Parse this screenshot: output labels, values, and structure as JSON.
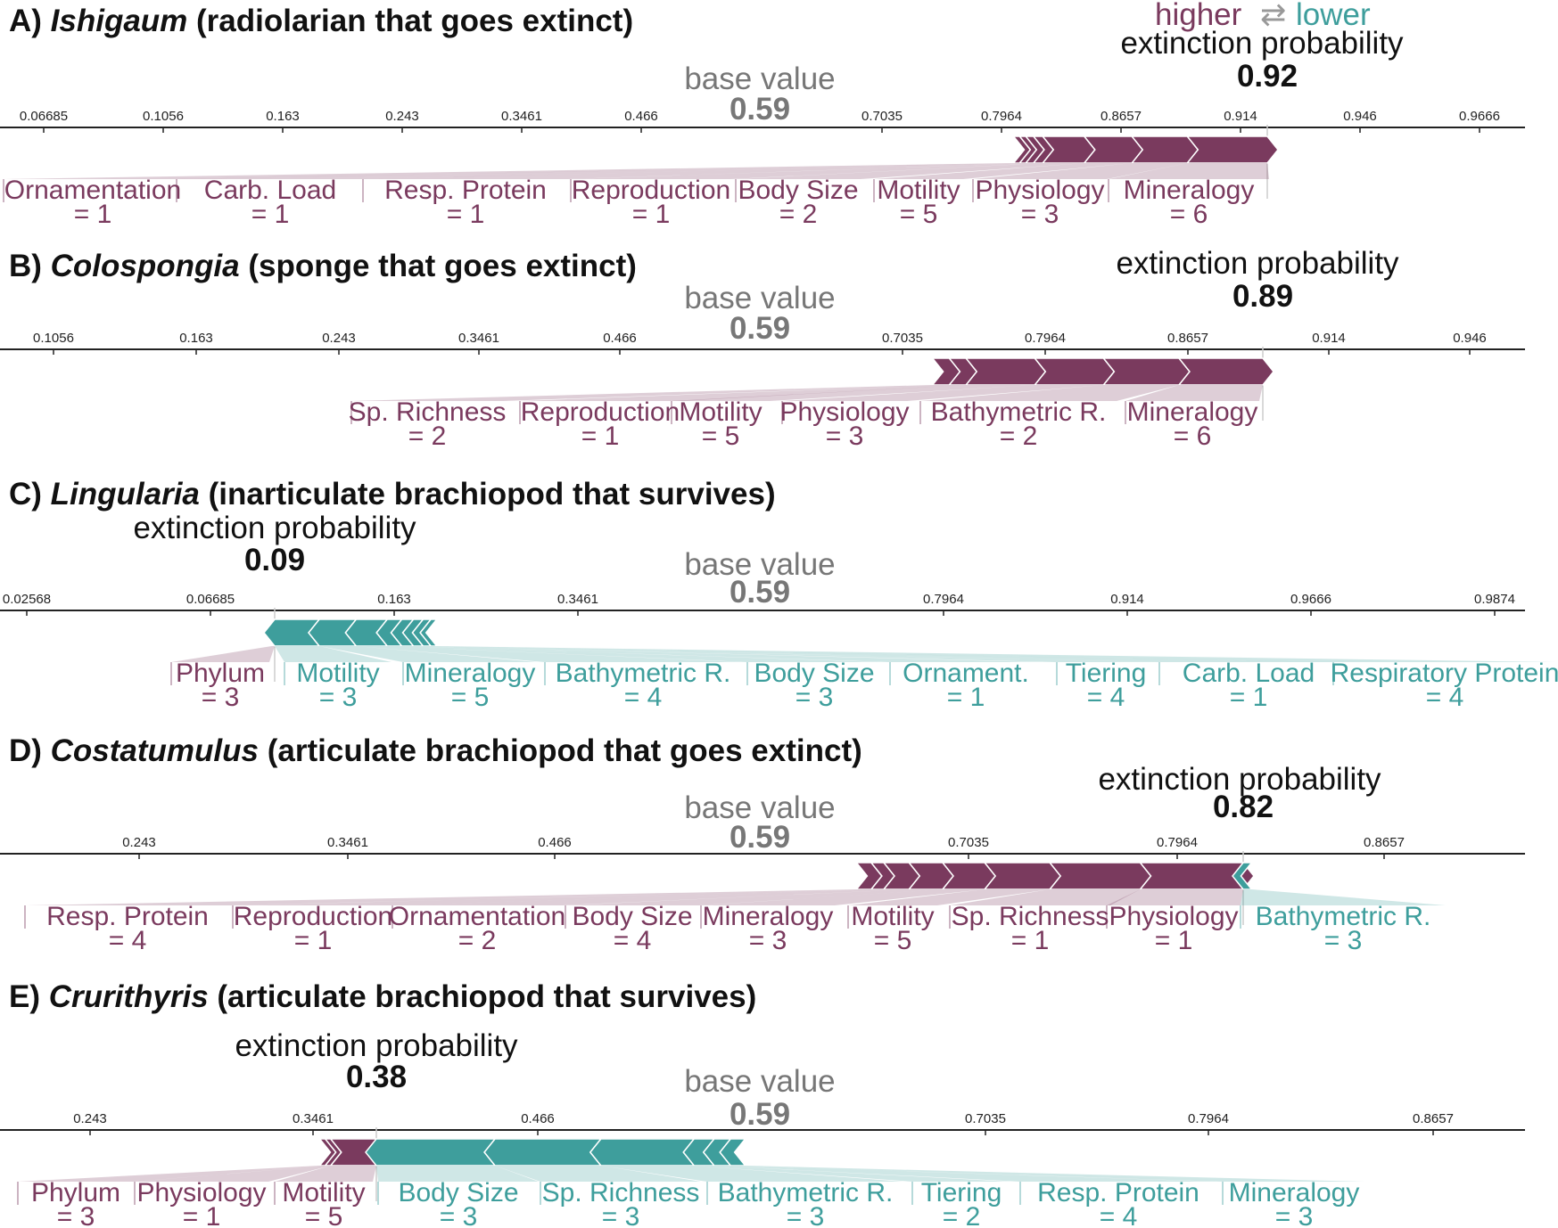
{
  "colors": {
    "higher": "#7a3a5e",
    "lower": "#3e9e9c",
    "axis": "#222222",
    "muted": "#777777"
  },
  "legend": {
    "higher": "higher",
    "arrow": "⇄",
    "lower": "lower"
  },
  "labels": {
    "base_value": "base value",
    "output": "extinction probability"
  },
  "chart_data": [
    {
      "type": "force",
      "panel": "A)",
      "taxon": "Ishigaum",
      "desc": "(radiolarian that goes extinct)",
      "base_value": 0.59,
      "base_value_label": "0.59",
      "output_value": 0.92,
      "output_value_label": "0.92",
      "ticks": [
        "0.06685",
        "0.1056",
        "0.163",
        "0.243",
        "0.3461",
        "0.466",
        "0.7035",
        "0.7964",
        "0.8657",
        "0.914",
        "0.946",
        "0.9666"
      ],
      "higher": [
        {
          "name": "Ornamentation",
          "value": "= 1",
          "weight": 0.004
        },
        {
          "name": "Carb. Load",
          "value": "= 1",
          "weight": 0.004
        },
        {
          "name": "Resp. Protein",
          "value": "= 1",
          "weight": 0.005
        },
        {
          "name": "Reproduction",
          "value": "= 1",
          "weight": 0.006
        },
        {
          "name": "Body Size",
          "value": "= 2",
          "weight": 0.027
        },
        {
          "name": "Motility",
          "value": "= 5",
          "weight": 0.031
        },
        {
          "name": "Physiology",
          "value": "= 3",
          "weight": 0.036
        },
        {
          "name": "Mineralogy",
          "value": "= 6",
          "weight": 0.052
        }
      ],
      "lower": []
    },
    {
      "type": "force",
      "panel": "B)",
      "taxon": "Colospongia",
      "desc": "(sponge that goes extinct)",
      "base_value": 0.59,
      "base_value_label": "0.59",
      "output_value": 0.89,
      "output_value_label": "0.89",
      "ticks": [
        "0.1056",
        "0.163",
        "0.243",
        "0.3461",
        "0.466",
        "0.7035",
        "0.7964",
        "0.8657",
        "0.914",
        "0.946"
      ],
      "higher": [
        {
          "name": "Sp. Richness",
          "value": "= 2",
          "weight": 0.01
        },
        {
          "name": "Reproduction",
          "value": "= 1",
          "weight": 0.01
        },
        {
          "name": "Motility",
          "value": "= 5",
          "weight": 0.041
        },
        {
          "name": "Physiology",
          "value": "= 3",
          "weight": 0.041
        },
        {
          "name": "Bathymetric R.",
          "value": "= 2",
          "weight": 0.045
        },
        {
          "name": "Mineralogy",
          "value": "= 6",
          "weight": 0.05
        }
      ],
      "lower": []
    },
    {
      "type": "force",
      "panel": "C)",
      "taxon": "Lingularia",
      "desc": "(inarticulate brachiopod that survives)",
      "base_value": 0.59,
      "base_value_label": "0.59",
      "output_value": 0.09,
      "output_value_label": "0.09",
      "ticks": [
        "0.02568",
        "0.06685",
        "0.163",
        "0.3461",
        "0.7964",
        "0.914",
        "0.9666",
        "0.9874"
      ],
      "higher": [
        {
          "name": "Phylum",
          "value": "= 3",
          "weight": 0.003
        }
      ],
      "lower": [
        {
          "name": "Motility",
          "value": "= 3",
          "weight": 0.046
        },
        {
          "name": "Mineralogy",
          "value": "= 5",
          "weight": 0.038
        },
        {
          "name": "Bathymetric R.",
          "value": "= 4",
          "weight": 0.032
        },
        {
          "name": "Body Size",
          "value": "= 3",
          "weight": 0.015
        },
        {
          "name": "Ornament.",
          "value": "= 1",
          "weight": 0.012
        },
        {
          "name": "Tiering",
          "value": "= 4",
          "weight": 0.01
        },
        {
          "name": "Carb. Load",
          "value": "= 1",
          "weight": 0.008
        },
        {
          "name": "Respiratory Protein",
          "value": "= 4",
          "weight": 0.006
        }
      ]
    },
    {
      "type": "force",
      "panel": "D)",
      "taxon": "Costatumulus",
      "desc": "(articulate brachiopod that goes extinct)",
      "base_value": 0.59,
      "base_value_label": "0.59",
      "output_value": 0.82,
      "output_value_label": "0.82",
      "ticks": [
        "0.243",
        "0.3461",
        "0.466",
        "0.7035",
        "0.7964",
        "0.8657"
      ],
      "higher": [
        {
          "name": "Resp. Protein",
          "value": "= 4",
          "weight": 0.007
        },
        {
          "name": "Reproduction",
          "value": "= 1",
          "weight": 0.006
        },
        {
          "name": "Ornamentation",
          "value": "= 2",
          "weight": 0.012
        },
        {
          "name": "Body Size",
          "value": "= 4",
          "weight": 0.016
        },
        {
          "name": "Mineralogy",
          "value": "= 3",
          "weight": 0.02
        },
        {
          "name": "Motility",
          "value": "= 5",
          "weight": 0.031
        },
        {
          "name": "Sp. Richness",
          "value": "= 1",
          "weight": 0.043
        },
        {
          "name": "Physiology",
          "value": "= 1",
          "weight": 0.049
        }
      ],
      "lower": [
        {
          "name": "Bathymetric R.",
          "value": "= 3",
          "weight": 0.004
        }
      ]
    },
    {
      "type": "force",
      "panel": "E)",
      "taxon": "Crurithyris",
      "desc": "(articulate brachiopod that survives)",
      "base_value": 0.59,
      "base_value_label": "0.59",
      "output_value": 0.38,
      "output_value_label": "0.38",
      "ticks": [
        "0.243",
        "0.3461",
        "0.466",
        "0.7035",
        "0.7964",
        "0.8657"
      ],
      "higher": [
        {
          "name": "Phylum",
          "value": "= 3",
          "weight": 0.003
        },
        {
          "name": "Physiology",
          "value": "= 1",
          "weight": 0.003
        },
        {
          "name": "Motility",
          "value": "= 5",
          "weight": 0.025
        }
      ],
      "lower": [
        {
          "name": "Body Size",
          "value": "= 3",
          "weight": 0.065
        },
        {
          "name": "Sp. Richness",
          "value": "= 3",
          "weight": 0.058
        },
        {
          "name": "Bathymetric R.",
          "value": "= 3",
          "weight": 0.051
        },
        {
          "name": "Tiering",
          "value": "= 2",
          "weight": 0.011
        },
        {
          "name": "Resp. Protein",
          "value": "= 4",
          "weight": 0.009
        },
        {
          "name": "Mineralogy",
          "value": "= 3",
          "weight": 0.008
        }
      ]
    }
  ]
}
